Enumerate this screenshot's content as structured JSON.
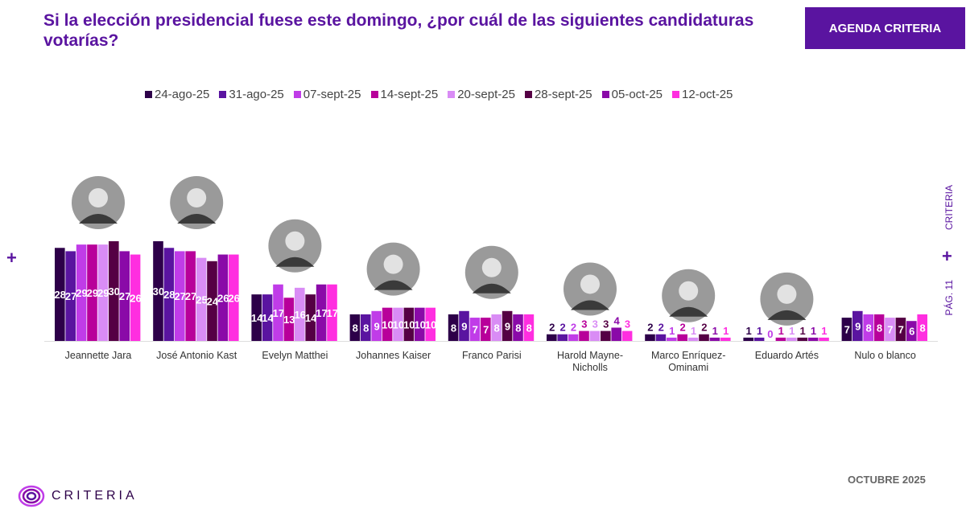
{
  "header": {
    "title": "Si la elección presidencial fuese este domingo, ¿por cuál de las siguientes candidaturas votarías?",
    "brand": "AGENDA CRITERIA"
  },
  "side": {
    "label": "CRITERIA",
    "page": "PÁG. 11"
  },
  "footer": {
    "logo": "CRITERIA",
    "date": "OCTUBRE 2025"
  },
  "chart_data": {
    "type": "bar",
    "legend_position": "top",
    "ylim": [
      0,
      30
    ],
    "categories": [
      "Jeannette Jara",
      "José Antonio Kast",
      "Evelyn Matthei",
      "Johannes Kaiser",
      "Franco Parisi",
      "Harold Mayne-Nicholls",
      "Marco Enríquez-Ominami",
      "Eduardo Artés",
      "Nulo o blanco"
    ],
    "series": [
      {
        "name": "24-ago-25",
        "color": "#2d0049",
        "values": [
          28,
          30,
          14,
          8,
          8,
          2,
          2,
          1,
          7
        ]
      },
      {
        "name": "31-ago-25",
        "color": "#5a14a0",
        "values": [
          27,
          28,
          14,
          8,
          9,
          2,
          2,
          1,
          9
        ]
      },
      {
        "name": "07-sept-25",
        "color": "#c03ce8",
        "values": [
          29,
          27,
          17,
          9,
          7,
          2,
          1,
          0,
          8
        ]
      },
      {
        "name": "14-sept-25",
        "color": "#b8009a",
        "values": [
          29,
          27,
          13,
          10,
          7,
          3,
          2,
          1,
          8
        ]
      },
      {
        "name": "20-sept-25",
        "color": "#d98cf5",
        "values": [
          29,
          25,
          16,
          10,
          8,
          3,
          1,
          1,
          7
        ]
      },
      {
        "name": "28-sept-25",
        "color": "#550044",
        "values": [
          30,
          24,
          14,
          10,
          9,
          3,
          2,
          1,
          7
        ]
      },
      {
        "name": "05-oct-25",
        "color": "#8a0aa8",
        "values": [
          27,
          26,
          17,
          10,
          8,
          4,
          1,
          1,
          6
        ]
      },
      {
        "name": "12-oct-25",
        "color": "#ff2ee0",
        "values": [
          26,
          26,
          17,
          10,
          8,
          3,
          1,
          1,
          8
        ]
      }
    ]
  }
}
